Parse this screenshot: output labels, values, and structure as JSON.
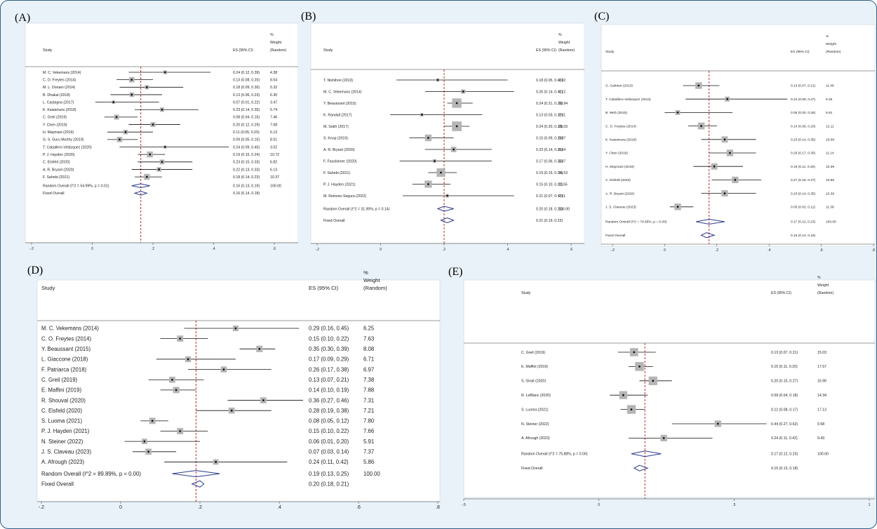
{
  "chart_data": [
    {
      "type": "forest",
      "panel_label": "(A)",
      "headers": {
        "study": "Study",
        "es": "ES (95% CI)",
        "weight_lines": [
          "%",
          "Weight",
          "(Random)"
        ]
      },
      "xaxis": {
        "min": -0.2,
        "max": 0.6,
        "ticks": [
          -0.2,
          0,
          0.2,
          0.4,
          0.6
        ],
        "tick_labels": [
          "-.2",
          "0",
          ".2",
          ".4",
          ".6"
        ]
      },
      "ref_line": 0.16,
      "studies": [
        {
          "name": "M. C. Vekemans (2014)",
          "es": 0.24,
          "lo": 0.12,
          "hi": 0.39,
          "ci": "0.24 (0.12, 0.39)",
          "weight": "4.38"
        },
        {
          "name": "C. O. Freytes (2014)",
          "es": 0.13,
          "lo": 0.08,
          "hi": 0.2,
          "ci": "0.13 (0.08, 0.20)",
          "weight": "8.54"
        },
        {
          "name": "M. L. Donato (2014)",
          "es": 0.18,
          "lo": 0.09,
          "hi": 0.3,
          "ci": "0.18 (0.09, 0.30)",
          "weight": "5.32"
        },
        {
          "name": "B. Dhakal (2018)",
          "es": 0.13,
          "lo": 0.06,
          "hi": 0.23,
          "ci": "0.13 (0.06, 0.23)",
          "weight": "6.30"
        },
        {
          "name": "L. Castagna (2017)",
          "es": 0.07,
          "lo": 0.01,
          "hi": 0.22,
          "ci": "0.07 (0.01, 0.22)",
          "weight": "3.47"
        },
        {
          "name": "K. Kawamura (2018)",
          "es": 0.23,
          "lo": 0.14,
          "hi": 0.35,
          "ci": "0.23 (0.14, 0.35)",
          "weight": "5.74"
        },
        {
          "name": "C. Greil (2019)",
          "es": 0.08,
          "lo": 0.04,
          "hi": 0.15,
          "ci": "0.08 (0.04, 0.15)",
          "weight": "7.46"
        },
        {
          "name": "Y. Chen (2019)",
          "es": 0.2,
          "lo": 0.12,
          "hi": 0.29,
          "ci": "0.20 (0.12, 0.29)",
          "weight": "7.08"
        },
        {
          "name": "H. Maymani (2019)",
          "es": 0.11,
          "lo": 0.05,
          "hi": 0.2,
          "ci": "0.11 (0.05, 0.20)",
          "weight": "6.13"
        },
        {
          "name": "G. S. Guru Murthy (2019)",
          "es": 0.09,
          "lo": 0.05,
          "hi": 0.15,
          "ci": "0.09 (0.05, 0.15)",
          "weight": "8.51"
        },
        {
          "name": "T. Caballero-Velázquez (2020)",
          "es": 0.24,
          "lo": 0.09,
          "hi": 0.45,
          "ci": "0.24 (0.09, 0.45)",
          "weight": "3.02"
        },
        {
          "name": "P. J. Hayden (2020)",
          "es": 0.19,
          "lo": 0.15,
          "hi": 0.24,
          "ci": "0.19 (0.15, 0.24)",
          "weight": "10.72"
        },
        {
          "name": "C. Eisfeld (2020)",
          "es": 0.23,
          "lo": 0.15,
          "hi": 0.33,
          "ci": "0.23 (0.15, 0.33)",
          "weight": "6.82"
        },
        {
          "name": "A. R. Bryant (2020)",
          "es": 0.22,
          "lo": 0.13,
          "hi": 0.33,
          "ci": "0.22 (0.13, 0.33)",
          "weight": "6.13"
        },
        {
          "name": "F. Sahebi (2021)",
          "es": 0.18,
          "lo": 0.14,
          "hi": 0.23,
          "ci": "0.18 (0.14, 0.23)",
          "weight": "10.37"
        }
      ],
      "summaries": [
        {
          "label": "Random Overall  (I^2 = 54.99%, p = 0.01)",
          "es": 0.16,
          "lo": 0.13,
          "hi": 0.19,
          "ci": "0.16 (0.13, 0.19)",
          "weight": "100.00"
        },
        {
          "label": "Fixed Overall",
          "es": 0.16,
          "lo": 0.14,
          "hi": 0.18,
          "ci": "0.16 (0.14, 0.18)",
          "weight": ""
        }
      ]
    },
    {
      "type": "forest",
      "panel_label": "(B)",
      "headers": {
        "study": "Study",
        "es": "ES (95% CI)",
        "weight_lines": [
          "%",
          "Weight",
          "(Random)"
        ]
      },
      "xaxis": {
        "min": -0.2,
        "max": 0.6,
        "ticks": [
          -0.2,
          0,
          0.2,
          0.4,
          0.6
        ],
        "tick_labels": [
          "-.2",
          "0",
          ".2",
          ".4",
          ".6"
        ]
      },
      "ref_line": 0.2,
      "studies": [
        {
          "name": "T. Nishihori (2013)",
          "es": 0.18,
          "lo": 0.05,
          "hi": 0.4,
          "ci": "0.18 (0.05, 0.40)",
          "weight": "2.32"
        },
        {
          "name": "M. C. Vekemans (2014)",
          "es": 0.26,
          "lo": 0.14,
          "hi": 0.42,
          "ci": "0.26 (0.14, 0.42)",
          "weight": "4.12"
        },
        {
          "name": "Y. Beaussant (2015)",
          "es": 0.24,
          "lo": 0.21,
          "hi": 0.29,
          "ci": "0.24 (0.21, 0.29)",
          "weight": "19.94"
        },
        {
          "name": "K. Randall (2017)",
          "es": 0.13,
          "lo": 0.03,
          "hi": 0.32,
          "ci": "0.13 (0.03, 0.32)",
          "weight": "2.51"
        },
        {
          "name": "M. Sobh (2017)",
          "es": 0.24,
          "lo": 0.2,
          "hi": 0.28,
          "ci": "0.24 (0.20, 0.28)",
          "weight": "21.03"
        },
        {
          "name": "S. Knop (2019)",
          "es": 0.15,
          "lo": 0.09,
          "hi": 0.23,
          "ci": "0.15 (0.09, 0.23)",
          "weight": "9.87"
        },
        {
          "name": "A. R. Bryant (2020)",
          "es": 0.23,
          "lo": 0.14,
          "hi": 0.35,
          "ci": "0.23 (0.14, 0.35)",
          "weight": "6.54"
        },
        {
          "name": "F. Fassbinner (2020)",
          "es": 0.17,
          "lo": 0.06,
          "hi": 0.35,
          "ci": "0.17 (0.06, 0.35)",
          "weight": "3.07"
        },
        {
          "name": "F. Sahebi (2021)",
          "es": 0.19,
          "lo": 0.15,
          "hi": 0.24,
          "ci": "0.19 (0.15, 0.24)",
          "weight": "16.53"
        },
        {
          "name": "P. J. Hayden (2021)",
          "es": 0.15,
          "lo": 0.1,
          "hi": 0.22,
          "ci": "0.15 (0.10, 0.22)",
          "weight": "11.55"
        },
        {
          "name": "M. Reinoso-Segura (2022)",
          "es": 0.21,
          "lo": 0.07,
          "hi": 0.42,
          "ci": "0.21 (0.07, 0.42)",
          "weight": "2.51"
        }
      ],
      "summaries": [
        {
          "label": "Random Overall  (I^2 = 31.95%, p = 0.14)",
          "es": 0.2,
          "lo": 0.18,
          "hi": 0.23,
          "ci": "0.20 (0.18, 0.23)",
          "weight": "100.00"
        },
        {
          "label": "Fixed Overall",
          "es": 0.21,
          "lo": 0.19,
          "hi": 0.23,
          "ci": "0.21 (0.19, 0.23)",
          "weight": ""
        }
      ]
    },
    {
      "type": "forest",
      "panel_label": "(C)",
      "headers": {
        "study": "Study",
        "es": "ES (95% CI)",
        "weight_lines": [
          "%",
          "Weight",
          "(Random)"
        ]
      },
      "xaxis": {
        "min": -0.2,
        "max": 0.8,
        "ticks": [
          -0.2,
          0,
          0.2,
          0.4,
          0.6,
          0.8
        ],
        "tick_labels": [
          "-.2",
          "0",
          ".2",
          ".4",
          ".6",
          ".8"
        ]
      },
      "ref_line": 0.17,
      "studies": [
        {
          "name": "G. Gahrton (2013)",
          "es": 0.13,
          "lo": 0.07,
          "hi": 0.21,
          "ci": "0.13 (0.07, 0.21)",
          "weight": "11.46"
        },
        {
          "name": "T. Caballero-Velázquez (2013)",
          "es": 0.24,
          "lo": 0.08,
          "hi": 0.47,
          "ci": "0.24 (0.08, 0.47)",
          "weight": "6.25"
        },
        {
          "name": "B. Web (2015)",
          "es": 0.05,
          "lo": 0.0,
          "hi": 0.26,
          "ci": "0.05 (0.00, 0.26)",
          "weight": "5.91"
        },
        {
          "name": "C. O. Freytes (2014)",
          "es": 0.14,
          "lo": 0.09,
          "hi": 0.2,
          "ci": "0.14 (0.09, 0.20)",
          "weight": "12.11"
        },
        {
          "name": "K. Kawamura (2018)",
          "es": 0.23,
          "lo": 0.14,
          "hi": 0.35,
          "ci": "0.23 (0.14, 0.35)",
          "weight": "10.06"
        },
        {
          "name": "Y. Chen (2019)",
          "es": 0.25,
          "lo": 0.17,
          "hi": 0.35,
          "ci": "0.25 (0.17, 0.35)",
          "weight": "11.14"
        },
        {
          "name": "H. Maymani (2019)",
          "es": 0.19,
          "lo": 0.11,
          "hi": 0.3,
          "ci": "0.19 (0.11, 0.30)",
          "weight": "10.39"
        },
        {
          "name": "C. Eisfeld (2020)",
          "es": 0.27,
          "lo": 0.18,
          "hi": 0.37,
          "ci": "0.27 (0.18, 0.37)",
          "weight": "10.96"
        },
        {
          "name": "A. R. Bryant (2020)",
          "es": 0.23,
          "lo": 0.14,
          "hi": 0.35,
          "ci": "0.23 (0.14, 0.35)",
          "weight": "10.39"
        },
        {
          "name": "J. S. Claveau (2023)",
          "es": 0.05,
          "lo": 0.02,
          "hi": 0.11,
          "ci": "0.05 (0.02, 0.11)",
          "weight": "11.38"
        }
      ],
      "summaries": [
        {
          "label": "Random Overall  (I^2 = 74.65%, p = 0.00)",
          "es": 0.17,
          "lo": 0.12,
          "hi": 0.23,
          "ci": "0.17 (0.12, 0.23)",
          "weight": "100.00"
        },
        {
          "label": "Fixed Overall",
          "es": 0.16,
          "lo": 0.14,
          "hi": 0.19,
          "ci": "0.16 (0.14, 0.19)",
          "weight": ""
        }
      ]
    },
    {
      "type": "forest",
      "panel_label": "(D)",
      "headers": {
        "study": "Study",
        "es": "ES (95% CI)",
        "weight_lines": [
          "%",
          "Weight",
          "(Random)"
        ]
      },
      "xaxis": {
        "min": -0.2,
        "max": 0.8,
        "ticks": [
          -0.2,
          0,
          0.2,
          0.4,
          0.6,
          0.8
        ],
        "tick_labels": [
          "-.2",
          "0",
          ".2",
          ".4",
          ".6",
          ".8"
        ]
      },
      "ref_line": 0.19,
      "studies": [
        {
          "name": "M. C. Vekemans (2014)",
          "es": 0.29,
          "lo": 0.16,
          "hi": 0.45,
          "ci": "0.29 (0.16, 0.45)",
          "weight": "6.25"
        },
        {
          "name": "C. O. Freytes (2014)",
          "es": 0.15,
          "lo": 0.1,
          "hi": 0.22,
          "ci": "0.15 (0.10, 0.22)",
          "weight": "7.63"
        },
        {
          "name": "Y. Beaussant (2015)",
          "es": 0.35,
          "lo": 0.3,
          "hi": 0.39,
          "ci": "0.35 (0.30, 0.39)",
          "weight": "8.08"
        },
        {
          "name": "L. Giaccone (2018)",
          "es": 0.17,
          "lo": 0.09,
          "hi": 0.29,
          "ci": "0.17 (0.09, 0.29)",
          "weight": "6.71"
        },
        {
          "name": "F. Patriarca (2018)",
          "es": 0.26,
          "lo": 0.17,
          "hi": 0.38,
          "ci": "0.26 (0.17, 0.38)",
          "weight": "6.97"
        },
        {
          "name": "C. Greil (2019)",
          "es": 0.13,
          "lo": 0.07,
          "hi": 0.21,
          "ci": "0.13 (0.07, 0.21)",
          "weight": "7.38"
        },
        {
          "name": "E. Maffini (2019)",
          "es": 0.14,
          "lo": 0.1,
          "hi": 0.19,
          "ci": "0.14 (0.10, 0.19)",
          "weight": "7.88"
        },
        {
          "name": "R. Shouval (2020)",
          "es": 0.36,
          "lo": 0.27,
          "hi": 0.46,
          "ci": "0.36 (0.27, 0.46)",
          "weight": "7.31"
        },
        {
          "name": "C. Eisfeld (2020)",
          "es": 0.28,
          "lo": 0.19,
          "hi": 0.38,
          "ci": "0.28 (0.19, 0.38)",
          "weight": "7.21"
        },
        {
          "name": "S. Luoma (2021)",
          "es": 0.08,
          "lo": 0.05,
          "hi": 0.12,
          "ci": "0.08 (0.05, 0.12)",
          "weight": "7.80"
        },
        {
          "name": "P. J. Hayden (2021)",
          "es": 0.15,
          "lo": 0.1,
          "hi": 0.22,
          "ci": "0.15 (0.10, 0.22)",
          "weight": "7.66"
        },
        {
          "name": "N. Steiner (2022)",
          "es": 0.06,
          "lo": 0.01,
          "hi": 0.2,
          "ci": "0.06 (0.01, 0.20)",
          "weight": "5.91"
        },
        {
          "name": "J. S. Claveau (2023)",
          "es": 0.07,
          "lo": 0.03,
          "hi": 0.14,
          "ci": "0.07 (0.03, 0.14)",
          "weight": "7.37"
        },
        {
          "name": "A. Afrough (2023)",
          "es": 0.24,
          "lo": 0.11,
          "hi": 0.42,
          "ci": "0.24 (0.11, 0.42)",
          "weight": "5.86"
        }
      ],
      "summaries": [
        {
          "label": "Random Overall  (I^2 = 89.89%, p = 0.00)",
          "es": 0.19,
          "lo": 0.13,
          "hi": 0.25,
          "ci": "0.19 (0.13, 0.25)",
          "weight": "100.00"
        },
        {
          "label": "Fixed Overall",
          "es": 0.2,
          "lo": 0.18,
          "hi": 0.21,
          "ci": "0.20 (0.18, 0.21)",
          "weight": ""
        }
      ]
    },
    {
      "type": "forest",
      "panel_label": "(E)",
      "headers": {
        "study": "Study",
        "es": "ES (95% CI)",
        "weight_lines": [
          "%",
          "Weight",
          "(Random)"
        ]
      },
      "xaxis": {
        "min": -0.5,
        "max": 1.0,
        "ticks": [
          -0.5,
          0,
          0.5,
          1.0
        ],
        "tick_labels": [
          "-.5",
          "0",
          ".5",
          "1"
        ]
      },
      "ref_line": 0.17,
      "studies": [
        {
          "name": "C. Greil (2019)",
          "es": 0.13,
          "lo": 0.07,
          "hi": 0.21,
          "ci": "0.13 (0.07, 0.21)",
          "weight": "15.03"
        },
        {
          "name": "E. Maffini (2019)",
          "es": 0.15,
          "lo": 0.11,
          "hi": 0.2,
          "ci": "0.15 (0.11, 0.20)",
          "weight": "17.57"
        },
        {
          "name": "S. Girait (2020)",
          "es": 0.2,
          "lo": 0.15,
          "hi": 0.27,
          "ci": "0.20 (0.15, 0.27)",
          "weight": "16.90"
        },
        {
          "name": "R. LeBlanc (2020)",
          "es": 0.09,
          "lo": 0.04,
          "hi": 0.18,
          "ci": "0.09 (0.04, 0.18)",
          "weight": "14.34"
        },
        {
          "name": "S. Luoma (2021)",
          "es": 0.12,
          "lo": 0.08,
          "hi": 0.17,
          "ci": "0.12 (0.08, 0.17)",
          "weight": "17.13"
        },
        {
          "name": "N. Steiner (2022)",
          "es": 0.44,
          "lo": 0.27,
          "hi": 0.62,
          "ci": "0.44 (0.27, 0.62)",
          "weight": "9.58"
        },
        {
          "name": "A. Afrough (2023)",
          "es": 0.24,
          "lo": 0.11,
          "hi": 0.42,
          "ci": "0.24 (0.11, 0.42)",
          "weight": "9.43"
        }
      ],
      "summaries": [
        {
          "label": "Random Overall  (I^2 = 75.88%, p = 0.00)",
          "es": 0.17,
          "lo": 0.12,
          "hi": 0.23,
          "ci": "0.17 (0.12, 0.23)",
          "weight": "100.00"
        },
        {
          "label": "Fixed Overall",
          "es": 0.15,
          "lo": 0.13,
          "hi": 0.18,
          "ci": "0.15 (0.13, 0.18)",
          "weight": ""
        }
      ]
    }
  ]
}
